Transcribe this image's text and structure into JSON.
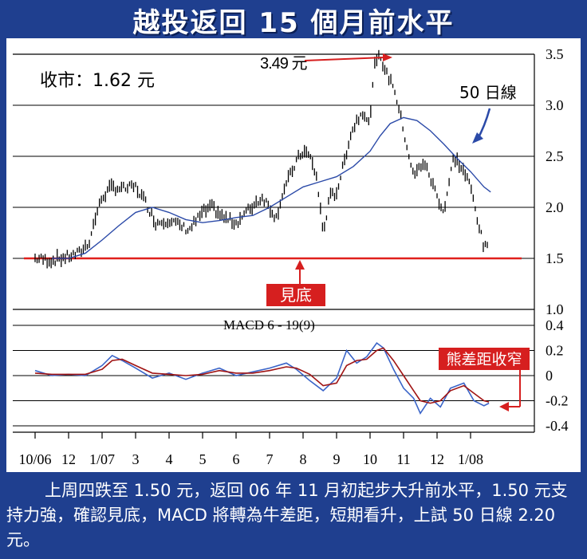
{
  "title": "越投返回 15 個月前水平",
  "price_label": "收市：1.62 元",
  "ma_label": "50 日線",
  "peak_label": "3.49 元",
  "bottom_label": "見底",
  "macd_title": "MACD 6 - 19(9)",
  "macd_note": "熊差距收窄",
  "caption": "上周四跌至 1.50 元，返回 06 年 11 月初起步大升前水平，1.50 元支持力強，確認見底，MACD 將轉為牛差距，短期看升，上試 50 日線 2.20 元。",
  "colors": {
    "background": "#1f3f8f",
    "price": "#000000",
    "ma50": "#2b4aa8",
    "support": "#e0201c",
    "annotation": "#d61f1f",
    "macd": "#3a64c8",
    "signal": "#a01414"
  },
  "chart_data": [
    {
      "type": "line",
      "name": "price",
      "ylim": [
        1.0,
        3.5
      ],
      "y_ticks": [
        "1.0",
        "1.5",
        "2.0",
        "2.5",
        "3.0",
        "3.5"
      ],
      "x_ticks": [
        "10/06",
        "12",
        "1/07",
        "3",
        "4",
        "5",
        "6",
        "7",
        "8",
        "9",
        "10",
        "11",
        "12",
        "1/08"
      ],
      "support_level": 1.5,
      "peak": 3.49,
      "x": [
        0,
        0.5,
        1,
        1.3,
        1.6,
        1.8,
        2.0,
        2.3,
        2.6,
        3.0,
        3.3,
        3.6,
        4.0,
        4.3,
        4.6,
        5.0,
        5.3,
        5.6,
        6.0,
        6.3,
        6.6,
        6.8,
        7.0,
        7.2,
        7.4,
        7.6,
        7.8,
        8.0,
        8.2,
        8.4,
        8.6,
        8.8,
        9.0,
        9.2,
        9.4,
        9.6,
        9.8,
        10.0,
        10.1,
        10.3,
        10.5,
        10.7,
        10.9,
        11.1,
        11.3,
        11.6,
        11.9,
        12.2,
        12.5,
        12.8,
        13.0,
        13.2,
        13.4,
        13.55
      ],
      "values": [
        1.5,
        1.48,
        1.52,
        1.55,
        1.65,
        1.9,
        2.1,
        2.2,
        2.18,
        2.2,
        2.05,
        1.85,
        1.88,
        1.82,
        1.78,
        1.95,
        2.0,
        1.9,
        1.85,
        1.95,
        2.05,
        2.1,
        2.0,
        1.9,
        2.15,
        2.3,
        2.45,
        2.55,
        2.5,
        2.3,
        1.75,
        2.1,
        2.15,
        2.4,
        2.7,
        2.85,
        2.95,
        2.8,
        3.35,
        3.49,
        3.3,
        3.2,
        2.9,
        2.6,
        2.3,
        2.45,
        2.2,
        1.95,
        2.5,
        2.35,
        2.2,
        1.9,
        1.6,
        1.62
      ],
      "ma50_x": [
        0.5,
        1.0,
        1.5,
        2.0,
        2.5,
        3.0,
        3.5,
        4.0,
        4.5,
        5.0,
        5.5,
        6.0,
        6.5,
        7.0,
        7.5,
        8.0,
        8.5,
        9.0,
        9.5,
        10.0,
        10.3,
        10.6,
        11.0,
        11.4,
        11.8,
        12.2,
        12.6,
        13.0,
        13.4,
        13.6
      ],
      "ma50_values": [
        1.5,
        1.5,
        1.55,
        1.68,
        1.82,
        1.95,
        2.0,
        1.95,
        1.88,
        1.85,
        1.87,
        1.9,
        1.92,
        2.0,
        2.1,
        2.2,
        2.25,
        2.3,
        2.4,
        2.55,
        2.7,
        2.82,
        2.88,
        2.85,
        2.75,
        2.62,
        2.48,
        2.35,
        2.2,
        2.15
      ]
    },
    {
      "type": "line",
      "name": "MACD 6 - 19(9)",
      "ylim": [
        -0.4,
        0.4
      ],
      "y_ticks": [
        "0.4",
        "0.2",
        "0",
        "-0.2",
        "-0.4"
      ],
      "x": [
        0,
        0.5,
        1,
        1.5,
        2.0,
        2.3,
        2.6,
        3.0,
        3.5,
        4.0,
        4.5,
        5.0,
        5.5,
        6.0,
        6.5,
        7.0,
        7.5,
        7.8,
        8.2,
        8.6,
        9.0,
        9.3,
        9.6,
        9.9,
        10.2,
        10.4,
        10.7,
        11.0,
        11.3,
        11.5,
        11.8,
        12.1,
        12.4,
        12.8,
        13.1,
        13.4,
        13.55
      ],
      "macd_values": [
        0.04,
        0.0,
        0.01,
        0.0,
        0.08,
        0.16,
        0.12,
        0.06,
        -0.02,
        0.02,
        -0.03,
        0.02,
        0.06,
        0.0,
        0.03,
        0.06,
        0.1,
        0.05,
        -0.04,
        -0.12,
        -0.02,
        0.2,
        0.1,
        0.15,
        0.26,
        0.22,
        0.05,
        -0.1,
        -0.18,
        -0.3,
        -0.18,
        -0.25,
        -0.1,
        -0.06,
        -0.2,
        -0.24,
        -0.22
      ],
      "signal_values": [
        0.02,
        0.01,
        0.01,
        0.01,
        0.05,
        0.12,
        0.13,
        0.08,
        0.02,
        0.01,
        0.0,
        0.01,
        0.04,
        0.02,
        0.02,
        0.04,
        0.07,
        0.06,
        0.01,
        -0.08,
        -0.06,
        0.08,
        0.12,
        0.13,
        0.2,
        0.22,
        0.12,
        0.0,
        -0.12,
        -0.2,
        -0.22,
        -0.2,
        -0.12,
        -0.08,
        -0.14,
        -0.2,
        -0.21
      ]
    }
  ]
}
